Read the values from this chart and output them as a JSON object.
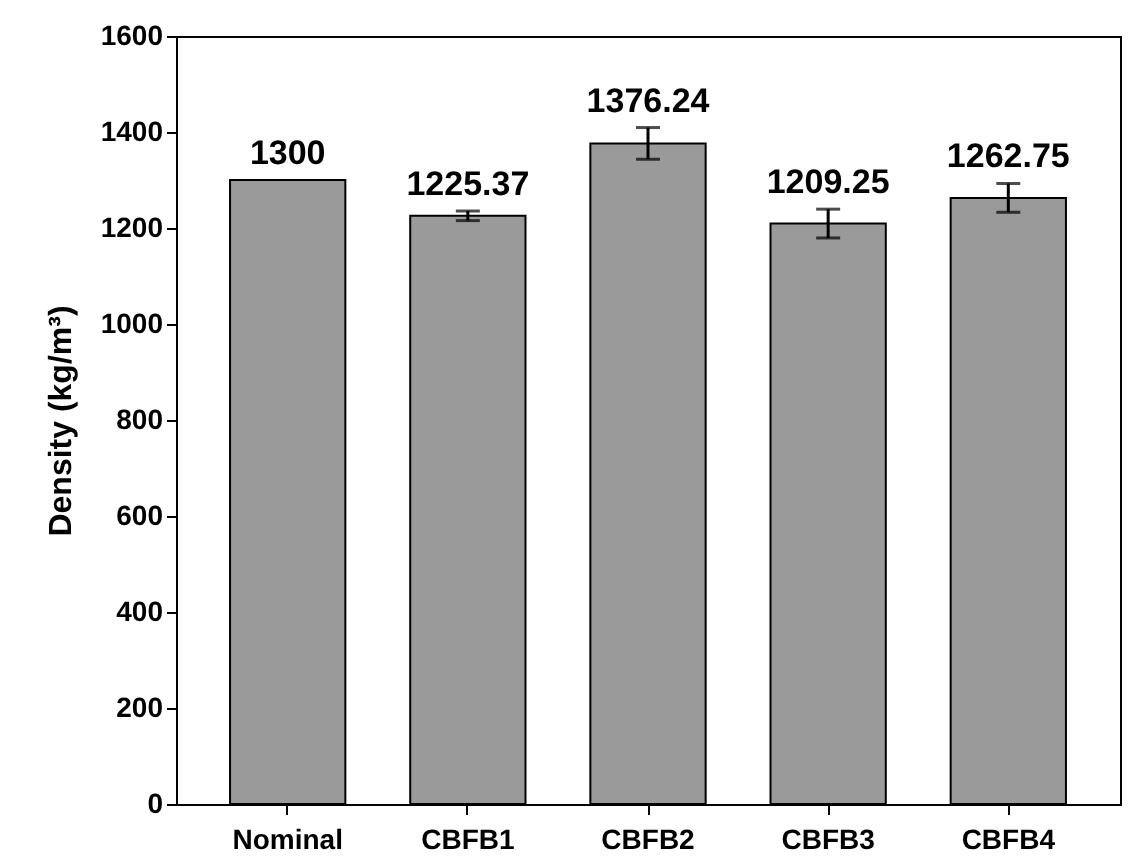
{
  "chart_data": {
    "type": "bar",
    "ylabel": "Density (kg/m³)",
    "categories": [
      "Nominal",
      "CBFB1",
      "CBFB2",
      "CBFB3",
      "CBFB4"
    ],
    "values": [
      1300,
      1225.37,
      1376.24,
      1209.25,
      1262.75
    ],
    "errors": [
      null,
      10,
      33,
      30,
      30
    ],
    "color": "#9a9a9a",
    "data_labels": true,
    "ylim": [
      0,
      1600
    ],
    "yticks": [
      0,
      200,
      400,
      600,
      800,
      1000,
      1200,
      1400,
      1600
    ],
    "grid": false
  }
}
